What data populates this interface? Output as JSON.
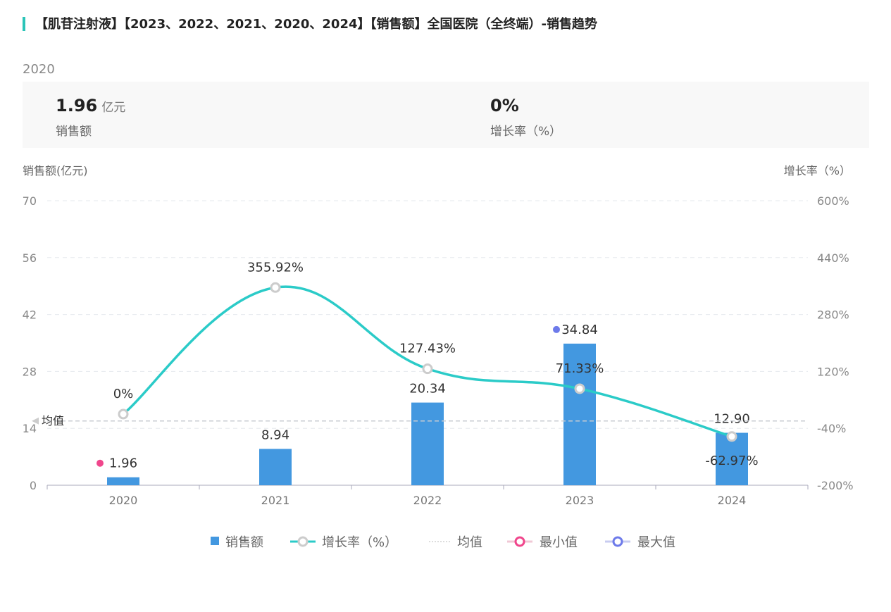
{
  "title": "【肌苷注射液】【2023、2022、2021、2020、2024】【销售额】全国医院（全终端）-销售趋势",
  "selected_year": "2020",
  "stats": [
    {
      "value": "1.96",
      "unit": "亿元",
      "label": "销售额"
    },
    {
      "value": "0%",
      "unit": "",
      "label": "增长率（%）"
    }
  ],
  "colors": {
    "bar": "#4398e0",
    "line": "#2bcbc8",
    "min": "#f0468c",
    "max": "#6d7aea",
    "accent": "#2bc4b8"
  },
  "chart_data": {
    "type": "bar",
    "categories": [
      "2020",
      "2021",
      "2022",
      "2023",
      "2024"
    ],
    "series": [
      {
        "name": "销售额",
        "type": "bar",
        "axis": "left",
        "values": [
          1.96,
          8.94,
          20.34,
          34.84,
          12.9
        ],
        "labels": [
          "1.96",
          "8.94",
          "20.34",
          "34.84",
          "12.90"
        ]
      },
      {
        "name": "增长率（%）",
        "type": "line",
        "axis": "right",
        "values": [
          0,
          355.92,
          127.43,
          71.33,
          -62.97
        ],
        "labels": [
          "0%",
          "355.92%",
          "127.43%",
          "71.33%",
          "-62.97%"
        ]
      }
    ],
    "mean": {
      "label": "均值",
      "value": 15.8
    },
    "min_index": 0,
    "max_index": 3,
    "ylabel_left": "销售额(亿元)",
    "ylabel_right": "增长率（%）",
    "ylim_left": [
      0,
      70
    ],
    "yticks_left": [
      "0",
      "14",
      "28",
      "42",
      "56",
      "70"
    ],
    "ylim_right": [
      -200,
      600
    ],
    "yticks_right": [
      "-200%",
      "-40%",
      "120%",
      "280%",
      "440%",
      "600%"
    ],
    "legend": [
      "销售额",
      "增长率（%）",
      "均值",
      "最小值",
      "最大值"
    ],
    "legend_position": "bottom",
    "grid": true
  }
}
